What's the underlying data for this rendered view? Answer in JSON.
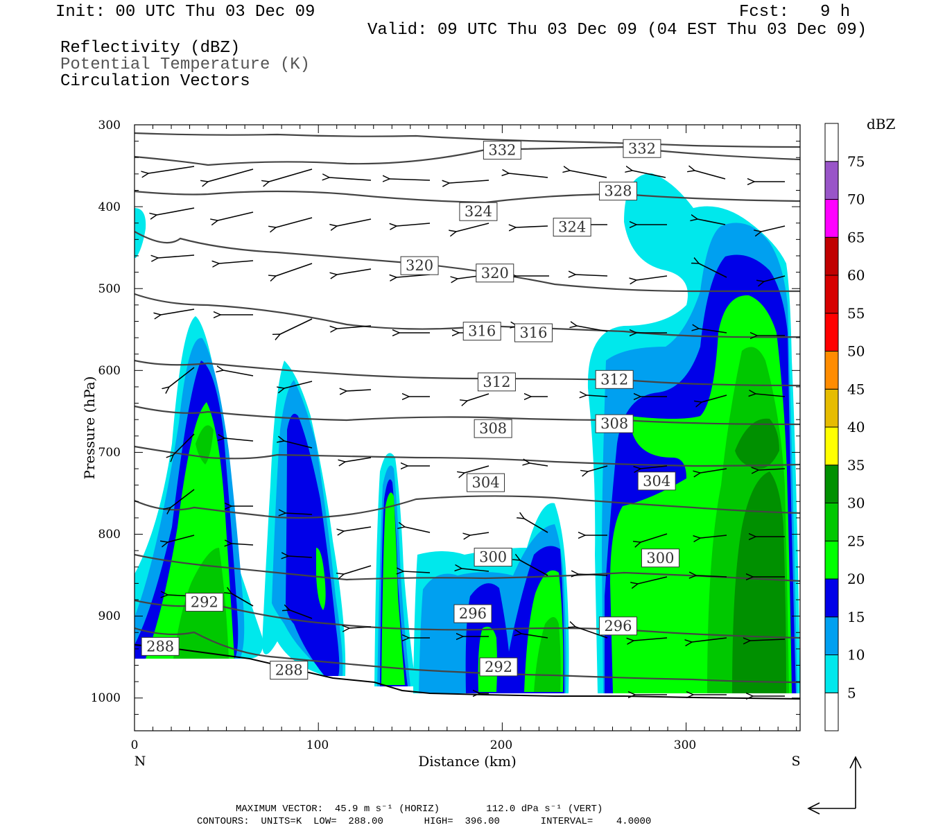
{
  "header": {
    "init": "Init: 00 UTC Thu 03 Dec 09",
    "fcst_label": "Fcst:",
    "fcst_value": "9 h",
    "valid": "Valid: 09 UTC Thu 03 Dec 09 (04 EST Thu 03 Dec 09)",
    "line1": "Reflectivity (dBZ)",
    "line2": "Potential Temperature (K)",
    "line3": "Circulation Vectors"
  },
  "footer": {
    "max_vector": "MAXIMUM VECTOR:  45.9 m s⁻¹ (HORIZ)        112.0 dPa s⁻¹ (VERT)",
    "contours": "CONTOURS:  UNITS=K  LOW=  288.00       HIGH=  396.00       INTERVAL=    4.0000"
  },
  "chart_data": {
    "type": "heatmap",
    "xlabel": "Distance (km)",
    "ylabel": "Pressure (hPa)",
    "xlim": [
      0,
      362
    ],
    "ylim": [
      1040,
      300
    ],
    "x_ticks": [
      "0",
      "100",
      "200",
      "300"
    ],
    "y_ticks": [
      "300",
      "400",
      "500",
      "600",
      "700",
      "800",
      "900",
      "1000"
    ],
    "x_end_labels": [
      "N",
      "S"
    ],
    "colorbar": {
      "title": "dBZ",
      "levels": [
        "5",
        "10",
        "15",
        "20",
        "25",
        "30",
        "35",
        "40",
        "45",
        "50",
        "55",
        "60",
        "65",
        "70",
        "75"
      ],
      "colors": [
        "#ffffff",
        "#00e8ec",
        "#00a0f0",
        "#0000e8",
        "#00ff00",
        "#00c800",
        "#009000",
        "#ffff00",
        "#e6bc00",
        "#ff8c00",
        "#ff0000",
        "#d60000",
        "#c00000",
        "#ff00ff",
        "#9955c8",
        "#ffffff"
      ]
    },
    "theta_labels": [
      {
        "x": 200,
        "p": 331,
        "text": "332"
      },
      {
        "x": 276,
        "p": 329,
        "text": "332"
      },
      {
        "x": 263,
        "p": 381,
        "text": "328"
      },
      {
        "x": 187,
        "p": 406,
        "text": "324"
      },
      {
        "x": 238,
        "p": 425,
        "text": "324"
      },
      {
        "x": 155,
        "p": 472,
        "text": "320"
      },
      {
        "x": 196,
        "p": 481,
        "text": "320"
      },
      {
        "x": 189,
        "p": 552,
        "text": "316"
      },
      {
        "x": 217,
        "p": 554,
        "text": "316"
      },
      {
        "x": 197,
        "p": 614,
        "text": "312"
      },
      {
        "x": 261,
        "p": 611,
        "text": "312"
      },
      {
        "x": 195,
        "p": 671,
        "text": "308"
      },
      {
        "x": 261,
        "p": 665,
        "text": "308"
      },
      {
        "x": 191,
        "p": 737,
        "text": "304"
      },
      {
        "x": 284,
        "p": 735,
        "text": "304"
      },
      {
        "x": 195,
        "p": 828,
        "text": "300"
      },
      {
        "x": 286,
        "p": 829,
        "text": "300"
      },
      {
        "x": 184,
        "p": 897,
        "text": "296"
      },
      {
        "x": 263,
        "p": 912,
        "text": "296"
      },
      {
        "x": 38,
        "p": 883,
        "text": "292"
      },
      {
        "x": 198,
        "p": 962,
        "text": "292"
      },
      {
        "x": 84,
        "p": 966,
        "text": "288"
      },
      {
        "x": 14,
        "p": 937,
        "text": "288"
      }
    ]
  }
}
